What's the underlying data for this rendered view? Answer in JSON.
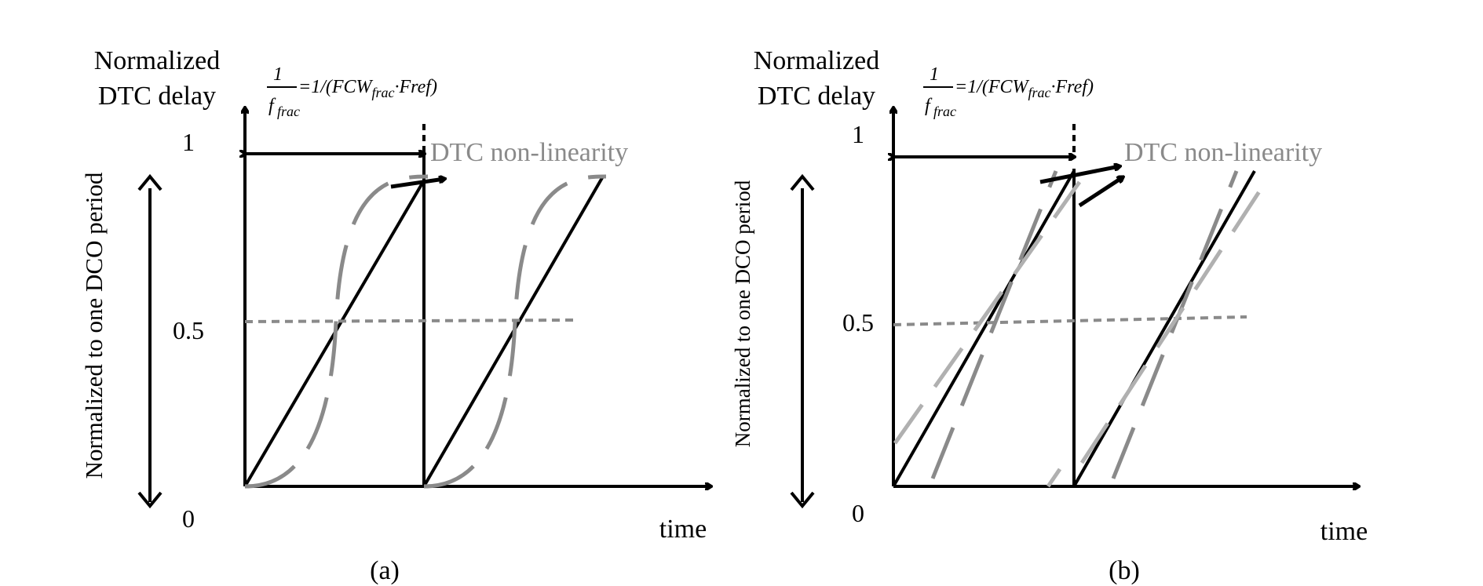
{
  "panels": [
    {
      "caption": "(a)",
      "ylabel_line1": "Normalized",
      "ylabel_line2": "DTC delay",
      "side_label": "Normalized to one DCO period",
      "tick_1": "1",
      "tick_05": "0.5",
      "tick_0": "0",
      "xlabel": "time",
      "annotation": "DTC non-linearity",
      "formula": {
        "numerator": "1",
        "denominator": "f",
        "denominator_sub": "frac",
        "rhs_prefix": "=1/(FCW",
        "rhs_sub": "frac",
        "rhs_suffix": "·Fref)"
      }
    },
    {
      "caption": "(b)",
      "ylabel_line1": "Normalized",
      "ylabel_line2": "DTC delay",
      "side_label": "Normalized to one DCO period",
      "tick_1": "1",
      "tick_05": "0.5",
      "tick_0": "0",
      "xlabel": "time",
      "annotation": "DTC non-linearity",
      "formula": {
        "numerator": "1",
        "denominator": "f",
        "denominator_sub": "frac",
        "rhs_prefix": "=1/(FCW",
        "rhs_sub": "frac",
        "rhs_suffix": "·Fref)"
      }
    }
  ],
  "colors": {
    "main": "#000000",
    "nonlinear": "#8a8a8a",
    "dashed_light": "#b0b0b0"
  }
}
